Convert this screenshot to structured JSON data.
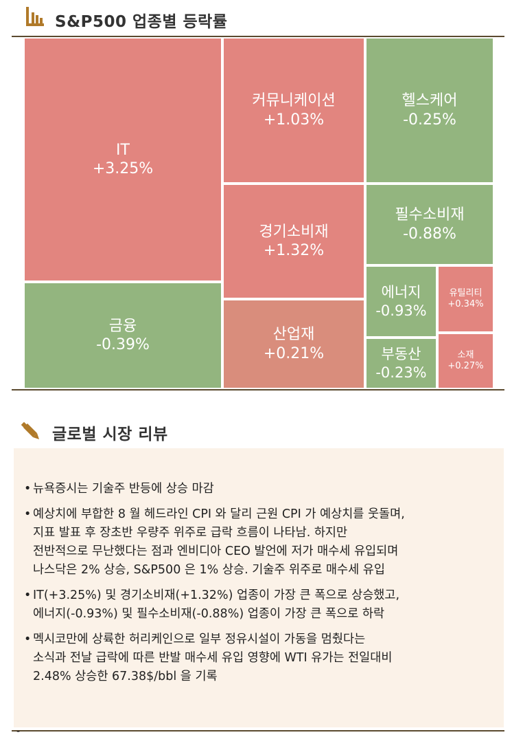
{
  "header": {
    "title": "S&P500 업종별 등락률"
  },
  "treemap": {
    "sectors": [
      {
        "name": "IT",
        "value": "+3.25%"
      },
      {
        "name": "커뮤니케이션",
        "value": "+1.03%"
      },
      {
        "name": "헬스케어",
        "value": "-0.25%"
      },
      {
        "name": "경기소비재",
        "value": "+1.32%"
      },
      {
        "name": "필수소비재",
        "value": "-0.88%"
      },
      {
        "name": "금융",
        "value": "-0.39%"
      },
      {
        "name": "산업재",
        "value": "+0.21%"
      },
      {
        "name": "에너지",
        "value": "-0.93%"
      },
      {
        "name": "유틸리티",
        "value": "+0.34%"
      },
      {
        "name": "부동산",
        "value": "-0.23%"
      },
      {
        "name": "소재",
        "value": "+0.27%"
      }
    ]
  },
  "review": {
    "title": "글로벌 시장 리뷰",
    "bullets": [
      [
        "뉴욕증시는 기술주 반등에 상승 마감"
      ],
      [
        "예상치에 부합한 8 월 헤드라인 CPI 와 달리 근원 CPI 가 예상치를 웃돌며,",
        "지표 발표 후 장초반 우량주 위주로 급락 흐름이 나타남. 하지만",
        "전반적으로 무난했다는 점과 엔비디아 CEO 발언에 저가 매수세 유입되며",
        "나스닥은 2% 상승, S&P500 은 1% 상승. 기술주 위주로 매수세 유입"
      ],
      [
        "IT(+3.25%) 및 경기소비재(+1.32%) 업종이 가장 큰 폭으로 상승했고,",
        "에너지(-0.93%) 및 필수소비재(-0.88%) 업종이 가장 큰 폭으로 하락"
      ],
      [
        "멕시코만에 상륙한 허리케인으로 일부 정유시설이 가동을 멈췄다는",
        "소식과 전날 급락에 따른 반발 매수세 유입 영향에 WTI 유가는 전일대비",
        "2.48% 상승한 67.38$/bbl 을 기록"
      ]
    ]
  },
  "footer": {
    "mark": "-"
  }
}
